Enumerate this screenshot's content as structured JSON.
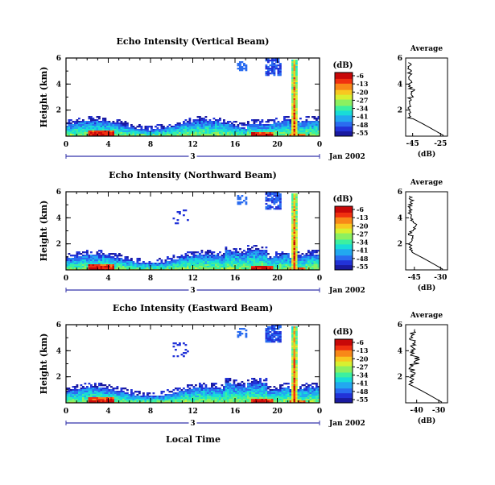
{
  "chart_data": [
    {
      "type": "heatmap",
      "title": "Echo Intensity (Vertical Beam)",
      "ylabel": "Height (km)",
      "x_ticks": [
        "0",
        "4",
        "8",
        "12",
        "16",
        "20",
        "0"
      ],
      "y_ticks": [
        "6",
        "4",
        "2"
      ],
      "xlim": [
        0,
        24
      ],
      "ylim": [
        0,
        6
      ],
      "date_tick": "3",
      "date_label": "Jan 2002",
      "colorbar": {
        "unit": "(dB)",
        "ticks": [
          "-6",
          "-13",
          "-20",
          "-27",
          "-34",
          "-41",
          "-48",
          "-55"
        ]
      },
      "average": {
        "title": "Average",
        "x_ticks": [
          "-45",
          "-25"
        ],
        "xlim": [
          -50,
          -20
        ],
        "xlabel": "(dB)",
        "y_ticks": [
          "6",
          "4",
          "2"
        ]
      }
    },
    {
      "type": "heatmap",
      "title": "Echo Intensity (Northward Beam)",
      "ylabel": "Height (km)",
      "x_ticks": [
        "0",
        "4",
        "8",
        "12",
        "16",
        "20",
        "0"
      ],
      "y_ticks": [
        "6",
        "4",
        "2"
      ],
      "xlim": [
        0,
        24
      ],
      "ylim": [
        0,
        6
      ],
      "date_tick": "3",
      "date_label": "Jan 2002",
      "colorbar": {
        "unit": "(dB)",
        "ticks": [
          "-6",
          "-13",
          "-20",
          "-27",
          "-34",
          "-41",
          "-48",
          "-55"
        ]
      },
      "average": {
        "title": "Average",
        "x_ticks": [
          "-45",
          "-30"
        ],
        "xlim": [
          -50,
          -26
        ],
        "xlabel": "(dB)",
        "y_ticks": [
          "6",
          "4",
          "2"
        ]
      }
    },
    {
      "type": "heatmap",
      "title": "Echo Intensity (Eastward Beam)",
      "ylabel": "Height (km)",
      "x_ticks": [
        "0",
        "4",
        "8",
        "12",
        "16",
        "20",
        "0"
      ],
      "y_ticks": [
        "6",
        "4",
        "2"
      ],
      "xlim": [
        0,
        24
      ],
      "ylim": [
        0,
        6
      ],
      "date_tick": "3",
      "date_label": "Jan 2002",
      "colorbar": {
        "unit": "(dB)",
        "ticks": [
          "-6",
          "-13",
          "-20",
          "-27",
          "-34",
          "-41",
          "-48",
          "-55"
        ]
      },
      "average": {
        "title": "Average",
        "x_ticks": [
          "-40",
          "-30"
        ],
        "xlim": [
          -45,
          -26
        ],
        "xlabel": "(dB)",
        "y_ticks": [
          "6",
          "4",
          "2"
        ]
      }
    }
  ],
  "bottom_xlabel": "Local Time",
  "colormap": [
    "#1a1aa0",
    "#2233d8",
    "#2a6cf0",
    "#22a8f0",
    "#18dcd8",
    "#3cf0a0",
    "#8cf060",
    "#d8f030",
    "#f8c820",
    "#f88818",
    "#f03010",
    "#c80808"
  ]
}
